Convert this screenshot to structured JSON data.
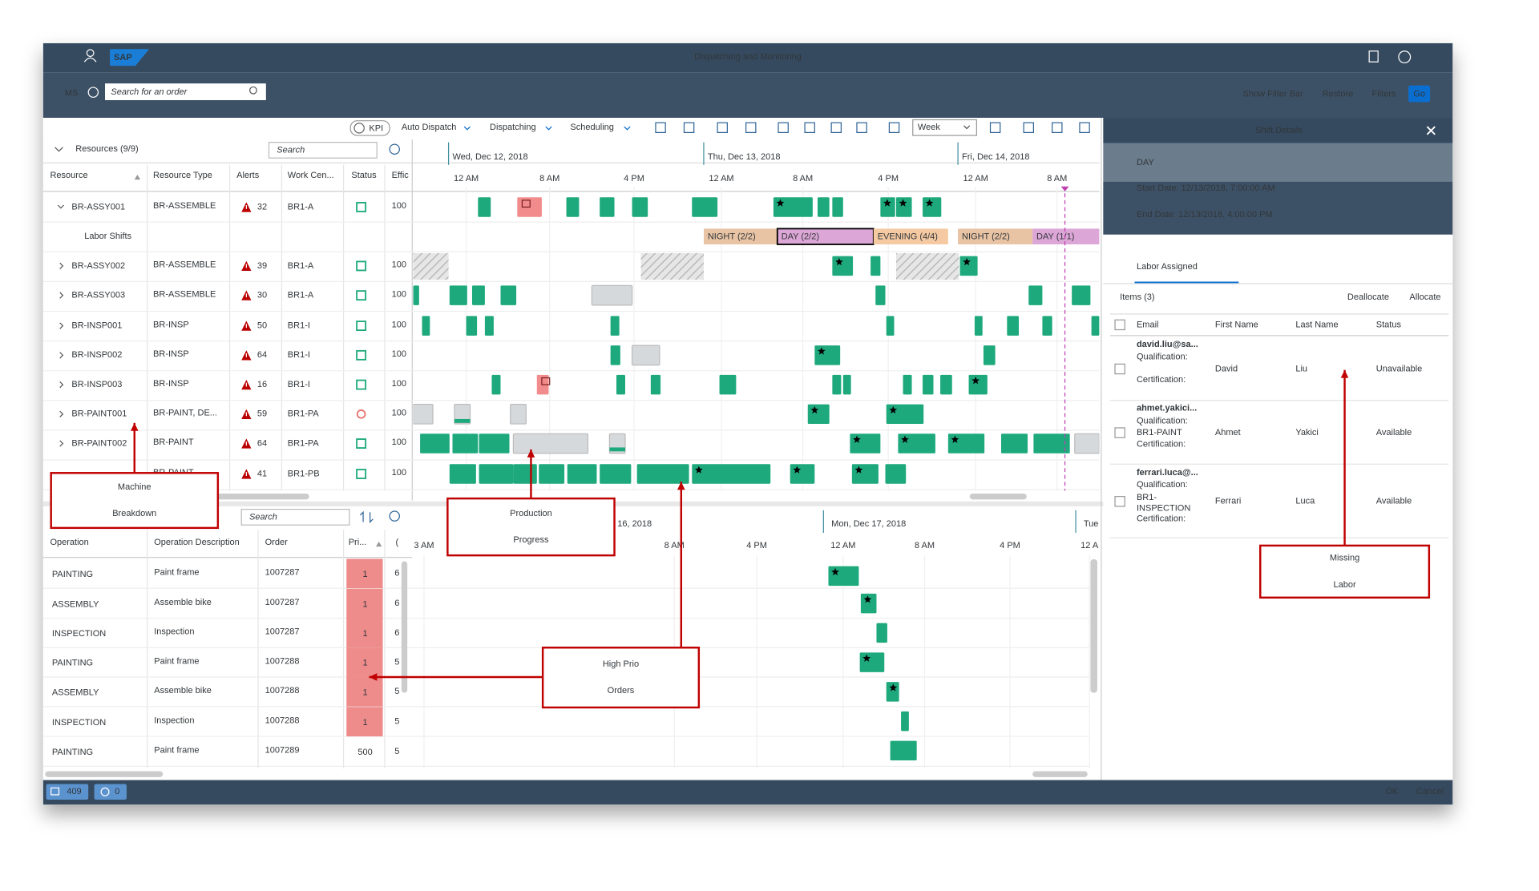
{
  "header": {
    "logo": "SAP",
    "title": "Dispatching and Monitoring"
  },
  "filter_bar": {
    "variant": "MS",
    "search_placeholder": "Search for an order",
    "actions": [
      "Show Filter Bar",
      "Restore",
      "Filters",
      "Go"
    ]
  },
  "gantt_toolbar": {
    "kpi": "KPI",
    "menus": [
      "Auto Dispatch",
      "Dispatching",
      "Scheduling"
    ],
    "view": "Week"
  },
  "resources": {
    "title": "Resources (9/9)",
    "search_placeholder": "Search",
    "columns": [
      "Resource",
      "Resource Type",
      "Alerts",
      "Work Cen...",
      "Status",
      "Effic"
    ],
    "labor_shifts_label": "Labor Shifts",
    "rows": [
      {
        "resource": "BR-ASSY001",
        "type": "BR-ASSEMBLE",
        "alerts": 32,
        "work_center": "BR1-A",
        "efficiency": 100
      },
      {
        "resource": "BR-ASSY002",
        "type": "BR-ASSEMBLE",
        "alerts": 39,
        "work_center": "BR1-A",
        "efficiency": 100
      },
      {
        "resource": "BR-ASSY003",
        "type": "BR-ASSEMBLE",
        "alerts": 30,
        "work_center": "BR1-A",
        "efficiency": 100
      },
      {
        "resource": "BR-INSP001",
        "type": "BR-INSP",
        "alerts": 50,
        "work_center": "BR1-I",
        "efficiency": 100
      },
      {
        "resource": "BR-INSP002",
        "type": "BR-INSP",
        "alerts": 64,
        "work_center": "BR1-I",
        "efficiency": 100
      },
      {
        "resource": "BR-INSP003",
        "type": "BR-INSP",
        "alerts": 16,
        "work_center": "BR1-I",
        "efficiency": 100
      },
      {
        "resource": "BR-PAINT001",
        "type": "BR-PAINT, DE...",
        "alerts": 59,
        "work_center": "BR1-PA",
        "efficiency": 100,
        "breakdown": true
      },
      {
        "resource": "BR-PAINT002",
        "type": "BR-PAINT",
        "alerts": 64,
        "work_center": "BR1-PA",
        "efficiency": 100
      },
      {
        "type": "BR-PAINT",
        "alerts": 41,
        "work_center": "BR1-PB",
        "efficiency": 100
      }
    ]
  },
  "timeline": {
    "dates": [
      "Wed, Dec 12, 2018",
      "Thu, Dec 13, 2018",
      "Fri, Dec 14, 2018"
    ],
    "hours": [
      "12 AM",
      "8 AM",
      "4 PM",
      "12 AM",
      "8 AM",
      "4 PM",
      "12 AM",
      "8 AM"
    ],
    "shifts": [
      "NIGHT (2/2)",
      "DAY (2/2)",
      "EVENING (4/4)",
      "NIGHT (2/2)",
      "DAY (1/1)"
    ]
  },
  "operations": {
    "search_placeholder": "Search",
    "columns": [
      "Operation",
      "Operation Description",
      "Order",
      "Pri...",
      "("
    ],
    "rows": [
      [
        "PAINTING",
        "Paint frame",
        "1007287",
        1,
        "6"
      ],
      [
        "ASSEMBLY",
        "Assemble bike",
        "1007287",
        1,
        "6"
      ],
      [
        "INSPECTION",
        "Inspection",
        "1007287",
        1,
        "6"
      ],
      [
        "PAINTING",
        "Paint frame",
        "1007288",
        1,
        "5"
      ],
      [
        "ASSEMBLY",
        "Assemble bike",
        "1007288",
        1,
        "5"
      ],
      [
        "INSPECTION",
        "Inspection",
        "1007288",
        1,
        "5"
      ],
      [
        "PAINTING",
        "Paint frame",
        "1007289",
        500,
        "5"
      ]
    ]
  },
  "bottom_timeline": {
    "dates": [
      "16, 2018",
      "Mon, Dec 17, 2018",
      "Tue"
    ],
    "hours": [
      "3 AM",
      "8 AM",
      "4 PM",
      "12 AM",
      "8 AM",
      "4 PM",
      "12 A"
    ]
  },
  "shift_details": {
    "title": "Shift Details",
    "shift": "DAY",
    "start": "Start Date: 12/13/2018, 7:00:00 AM",
    "end": "End Date: 12/13/2018, 4:00:00 PM",
    "section": "Labor Assigned",
    "items": "Items (3)",
    "actions": [
      "Deallocate",
      "Allocate"
    ],
    "columns": [
      "Email",
      "First Name",
      "Last Name",
      "Status"
    ],
    "rows": [
      {
        "email": "david.liu@sa...",
        "details": [
          "Qualification:",
          "Certification:"
        ],
        "first": "David",
        "last": "Liu",
        "status": "Unavailable"
      },
      {
        "email": "ahmet.yakici...",
        "details": [
          "Qualification:",
          "BR1-PAINT",
          "Certification:"
        ],
        "first": "Ahmet",
        "last": "Yakici",
        "status": "Available"
      },
      {
        "email": "ferrari.luca@...",
        "details": [
          "Qualification:",
          "BR1-",
          "INSPECTION",
          "Certification:"
        ],
        "first": "Ferrari",
        "last": "Luca",
        "status": "Available"
      }
    ]
  },
  "footer": {
    "messages": 409,
    "pending": 0,
    "actions": [
      "OK",
      "Cancel"
    ]
  },
  "annotations": [
    {
      "lines": [
        "Machine",
        "Breakdown"
      ]
    },
    {
      "lines": [
        "Production",
        "Progress"
      ]
    },
    {
      "lines": [
        "High Prio",
        "Orders"
      ]
    },
    {
      "lines": [
        "Missing",
        "Labor"
      ]
    }
  ]
}
